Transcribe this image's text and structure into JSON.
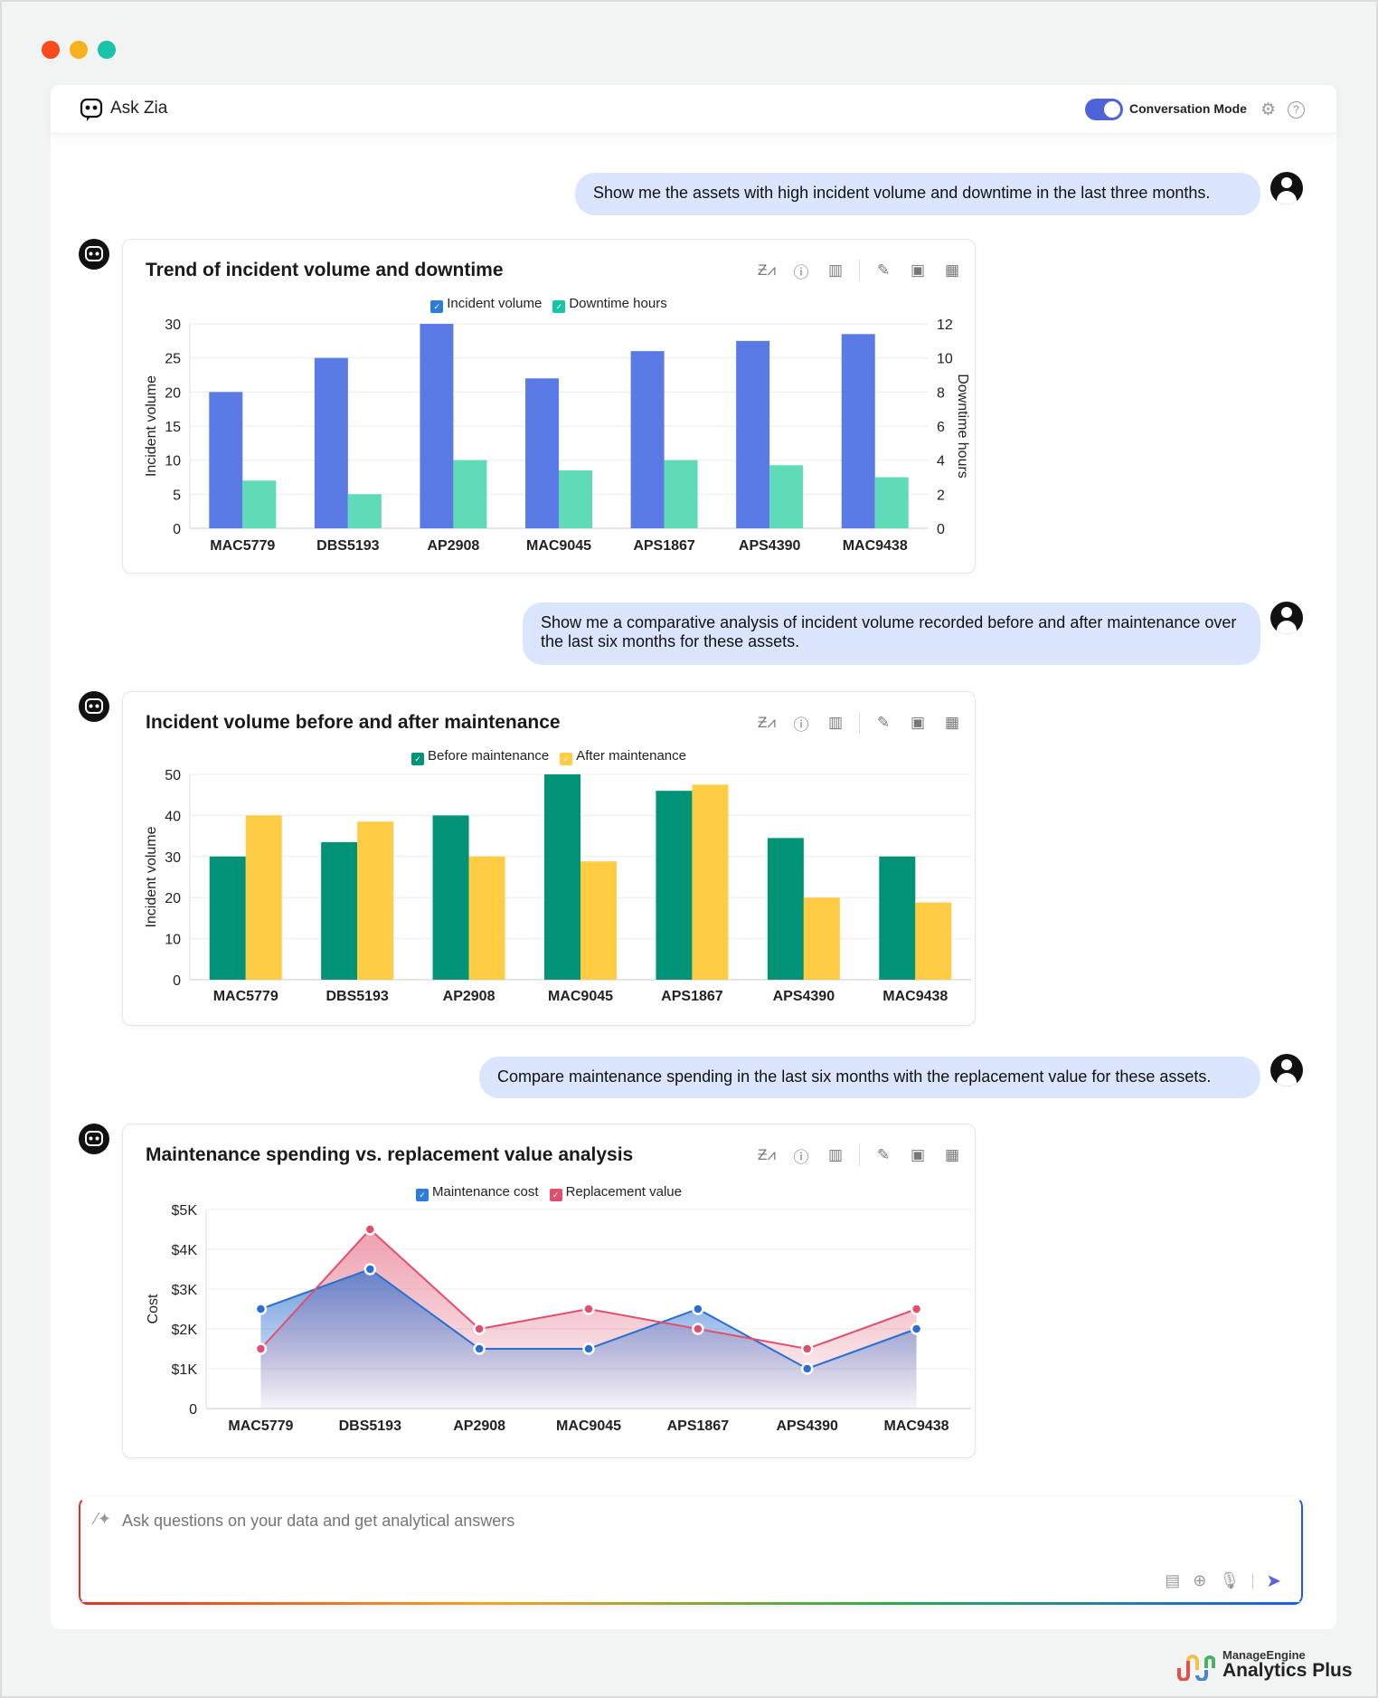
{
  "window": {
    "dots": [
      "#fc4a1a",
      "#f7b21b",
      "#19c3a6"
    ]
  },
  "header": {
    "title": "Ask Zia",
    "conversation_mode_label": "Conversation Mode",
    "conversation_mode_on": true
  },
  "messages": [
    "Show me the assets with high incident volume and downtime in the last three months.",
    "Show me a comparative analysis of incident volume recorded before and after maintenance over the last six months for these assets.",
    "Compare maintenance spending in the last six months with the replacement value for these assets."
  ],
  "card_tools": [
    "zia-insights-icon",
    "info-icon",
    "chart-type-icon",
    "edit-icon",
    "save-icon",
    "add-to-dashboard-icon"
  ],
  "chart_data": [
    {
      "type": "bar",
      "title": "Trend of incident volume and downtime",
      "categories": [
        "MAC5779",
        "DBS5193",
        "AP2908",
        "MAC9045",
        "APS1867",
        "APS4390",
        "MAC9438"
      ],
      "ylabel": "Incident volume",
      "y2label": "Downtime hours",
      "ylim": [
        0,
        30
      ],
      "y2lim": [
        0,
        12
      ],
      "yticks": [
        "0",
        "5",
        "10",
        "15",
        "20",
        "25",
        "30"
      ],
      "y2ticks": [
        "0",
        "2",
        "4",
        "6",
        "8",
        "10",
        "12"
      ],
      "legend": "top",
      "grid": true,
      "series": [
        {
          "name": "Incident volume",
          "axis": "left",
          "color": "#5a7be6",
          "values": [
            20,
            25,
            30,
            22,
            26,
            27.5,
            28.5
          ]
        },
        {
          "name": "Downtime hours",
          "axis": "right",
          "color": "#5fdbb8",
          "values": [
            2.8,
            2,
            4,
            3.4,
            4,
            3.7,
            3
          ]
        }
      ]
    },
    {
      "type": "bar",
      "title": "Incident volume before and after maintenance",
      "categories": [
        "MAC5779",
        "DBS5193",
        "AP2908",
        "MAC9045",
        "APS1867",
        "APS4390",
        "MAC9438"
      ],
      "ylabel": "Incident volume",
      "ylim": [
        0,
        50
      ],
      "yticks": [
        "0",
        "10",
        "20",
        "30",
        "40",
        "50"
      ],
      "legend": "top",
      "grid": true,
      "series": [
        {
          "name": "Before maintenance",
          "color": "#009378",
          "values": [
            30,
            33.5,
            40,
            50,
            46,
            34.5,
            30
          ]
        },
        {
          "name": "After maintenance",
          "color": "#ffcc44",
          "values": [
            40,
            38.5,
            30,
            28.8,
            47.5,
            20,
            18.8
          ]
        }
      ]
    },
    {
      "type": "area",
      "title": "Maintenance spending vs. replacement value analysis",
      "categories": [
        "MAC5779",
        "DBS5193",
        "AP2908",
        "MAC9045",
        "APS1867",
        "APS4390",
        "MAC9438"
      ],
      "ylabel": "Cost",
      "ylim": [
        0,
        5000
      ],
      "yticks": [
        "0",
        "$1K",
        "$2K",
        "$3K",
        "$4K",
        "$5K"
      ],
      "legend": "top",
      "grid": true,
      "series": [
        {
          "name": "Maintenance cost",
          "color": "#2a6fd0",
          "values": [
            2500,
            3500,
            1500,
            1500,
            2500,
            1000,
            2000
          ]
        },
        {
          "name": "Replacement value",
          "color": "#e0506e",
          "values": [
            1500,
            4500,
            2000,
            2500,
            2000,
            1500,
            2500
          ]
        }
      ]
    }
  ],
  "input": {
    "placeholder": "Ask questions on your data and get analytical answers"
  },
  "brand": {
    "small": "ManageEngine",
    "big": "Analytics Plus"
  }
}
